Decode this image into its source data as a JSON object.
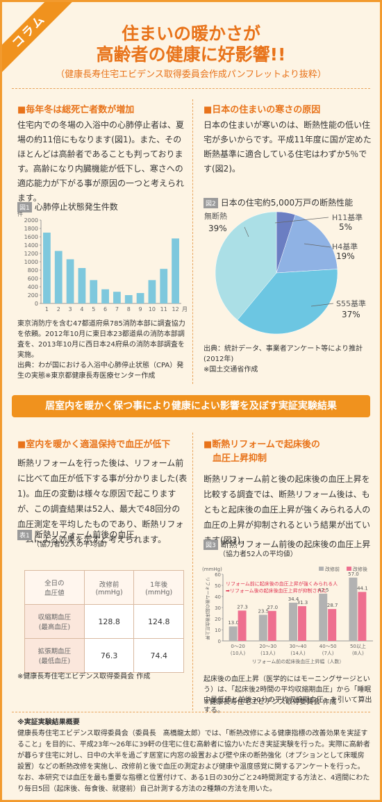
{
  "header": {
    "badge": "コラム",
    "title_lines": [
      "住まいの暖かさが",
      "高齢者の健康に好影響!!"
    ],
    "subtitle": "（健康長寿住宅エビデンス取得委員会作成パンフレットより抜粋）"
  },
  "section1": {
    "heading": "■毎年冬は総死亡者数が増加",
    "body": "住宅内での冬場の入浴中の心肺停止者は、夏場の約11倍にもなります(図1)。また、そのほとんどは高齢者であることも判っております。高齢になり内臓機能が低下し、寒さへの適応能力が下がる事が原因の一つと考えられます。",
    "figure_label": "図1",
    "notes": [
      "東京消防庁を含む47都道府県785消防本部に調査協力を依頼。2012年10月に東日本23都道県の消防本部調査を、2013年10月に西日本24府県の消防本部調査を実施。",
      "出典：わが国における入浴中心肺停止状態（CPA）発生の実態※東京都健康長寿医療センター作成"
    ]
  },
  "section2": {
    "heading": "■日本の住まいの寒さの原因",
    "body": "日本の住まいが寒いのは、断熱性能の低い住宅が多いからです。平成11年度に国が定めた断熱基準に適合している住宅はわずか5％です(図2)。",
    "figure_label": "図2",
    "notes": [
      "出典：統計データ、事業者アンケート等により推計(2012年)",
      "※国土交通省作成"
    ]
  },
  "banner": "居室内を暖かく保つ事により健康によい影響を及ぼす実証実験結果",
  "section3": {
    "heading": "■室内を暖かく適温保持で血圧が低下",
    "body": "断熱リフォームを行った後は、リフォーム前に比べて血圧が低下する事が分かりました(表1)。血圧の変動は様々な原因で起こりますが、この調査結果は52人、最大で48回分の血圧測定を平均したものであり、断熱リフォームによる効果を示すと考えられます。",
    "table_label": "表1",
    "table_title": "断熱リフォーム前後の血圧",
    "table_subtitle": "（協力者52人の平均値）",
    "table": {
      "header": [
        [
          "全日の",
          "血圧値"
        ],
        [
          "改修前",
          "(mmHg)"
        ],
        [
          "1年後",
          "(mmHg)"
        ]
      ],
      "rows": [
        {
          "label": [
            "収縮期血圧",
            "(最高血圧)"
          ],
          "values": [
            128.8,
            124.8
          ]
        },
        {
          "label": [
            "拡張期血圧",
            "(最低血圧)"
          ],
          "values": [
            76.3,
            74.4
          ]
        }
      ]
    },
    "note": "※健康長寿住宅エビデンス取得委員会 作成"
  },
  "section4": {
    "heading": [
      "■断熱リフォームで起床後の",
      "血圧上昇抑制"
    ],
    "body": "断熱リフォーム前と後の起床後の血圧上昇を比較する調査では、断熱リフォーム後は、もともと起床後の血圧上昇が強くみられる人の血圧の上昇が抑制されるという結果が出ています(図3)。",
    "figure_label": "図3",
    "notes": [
      "起床後の血圧上昇（医学的にはモーニングサージという）は、「起床後2時間の平均収縮期血圧」から「睡眠中最低値と前後30分の平均収縮期血圧」を引いて算出する。",
      "※健康長寿住宅エビデンス取得委員会 作成"
    ]
  },
  "summary": {
    "heading": "※実証実験結果概要",
    "body": "健康長寿住宅エビデンス取得委員会（委員長　髙橋龍太郎）では、「断熱改修による健康指標の改善効果を実証すること」を目的に、平成23年〜26年に39軒の住宅に住む高齢者に協力いただき実証実験を行った。実際に高齢者が暮らす住宅に対し、日中の大半を過ごす居室に内窓の設置および壁や床の断熱強化（オプションとして床暖房設置）などの断熱改修を実施し、改修前と後で血圧の測定および健康や温度感覚に関するアンケートを行った。なお、本研究では血圧を最も重要な指標と位置付けて、ある1日の30分ごと24時間測定する方法と、4週間にわたり毎日5回（起床後、毎食後、就寝前）自己計測する方法の2種類の方法を用いた。"
  },
  "chart_data": [
    {
      "type": "bar",
      "title": "心肺停止状態発生件数",
      "y_unit": "件",
      "x_unit": "月",
      "categories": [
        "1",
        "2",
        "3",
        "4",
        "5",
        "6",
        "7",
        "8",
        "9",
        "10",
        "11",
        "12"
      ],
      "values": [
        1700,
        1260,
        1060,
        850,
        560,
        340,
        280,
        200,
        250,
        560,
        830,
        1560
      ],
      "color": "#7ec8dd",
      "ylim": [
        0,
        2000
      ],
      "yticks": [
        0,
        200,
        400,
        600,
        800,
        1000,
        1200,
        1400,
        1600,
        1800,
        2000
      ],
      "grid": false
    },
    {
      "type": "pie",
      "title": "日本の住宅約5,000万戸の断熱性能",
      "categories": [
        "H11基準",
        "H4基準",
        "S55基準",
        "無断熱"
      ],
      "values": [
        5,
        19,
        37,
        39
      ],
      "value_labels": [
        "5%",
        "19%",
        "37%",
        "39%"
      ],
      "colors": [
        "#6b7ec2",
        "#8fb2e4",
        "#6cc6e2",
        "#abdfe6"
      ]
    },
    {
      "type": "grouped-bar",
      "title": "断熱リフォーム前後の起床後の血圧上昇",
      "subtitle": "（協力者52人の平均値）",
      "y_unit": "(mmHg)",
      "y_label": "リフォーム後の起床後血圧上昇",
      "x_label": "リフォーム前の起床後血圧上昇幅（人数）",
      "categories": [
        "0〜20",
        "20〜30",
        "30〜40",
        "40〜50",
        "50以上"
      ],
      "category_notes": [
        "(10人)",
        "(13人)",
        "(14人)",
        "(7人)",
        "(8人)"
      ],
      "series": [
        {
          "name": "改修前",
          "color": "#b2b2b2",
          "values": [
            13.0,
            23.5,
            34.4,
            42.5,
            57.0
          ],
          "value_labels": [
            "13.0",
            "23.5",
            "34.4",
            "42.5",
            "57.0"
          ]
        },
        {
          "name": "改修後",
          "color": "#ee6f8f",
          "values": [
            27.3,
            27.0,
            31.3,
            28.7,
            44.1
          ],
          "value_labels": [
            "27.3",
            "27.0",
            "31.3",
            "28.7",
            "44.1"
          ]
        }
      ],
      "ylim": [
        0,
        60
      ],
      "yticks": [
        0,
        10,
        20,
        30,
        40,
        50,
        60
      ],
      "grid": false,
      "legend": "top-right",
      "annotation": [
        "リフォーム前に起床後の血圧上昇が強くみられる人",
        "➡リフォーム後の起床後血圧上昇が抑制された"
      ]
    }
  ]
}
